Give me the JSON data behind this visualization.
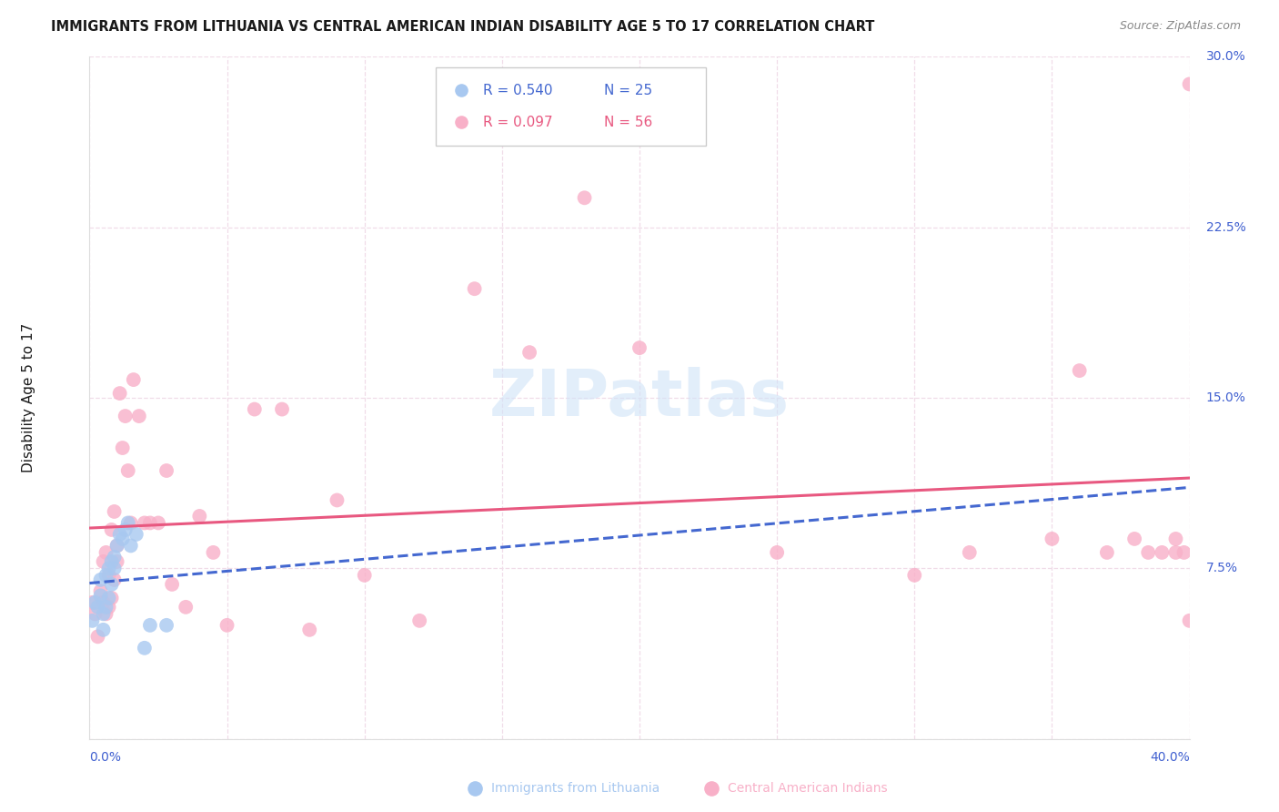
{
  "title": "IMMIGRANTS FROM LITHUANIA VS CENTRAL AMERICAN INDIAN DISABILITY AGE 5 TO 17 CORRELATION CHART",
  "source": "Source: ZipAtlas.com",
  "ylabel": "Disability Age 5 to 17",
  "xlim": [
    0.0,
    0.4
  ],
  "ylim": [
    0.0,
    0.3
  ],
  "xtick_left_label": "0.0%",
  "xtick_right_label": "40.0%",
  "ytick_labels": [
    "7.5%",
    "15.0%",
    "22.5%",
    "30.0%"
  ],
  "ytick_vals": [
    0.075,
    0.15,
    0.225,
    0.3
  ],
  "xtick_vals": [
    0.0,
    0.05,
    0.1,
    0.15,
    0.2,
    0.25,
    0.3,
    0.35,
    0.4
  ],
  "legend_blue_r": "R = 0.540",
  "legend_blue_n": "N = 25",
  "legend_pink_r": "R = 0.097",
  "legend_pink_n": "N = 56",
  "legend_blue_label": "Immigrants from Lithuania",
  "legend_pink_label": "Central American Indians",
  "blue_scatter_color": "#a8c8f0",
  "pink_scatter_color": "#f8b0c8",
  "blue_line_color": "#4468d0",
  "pink_line_color": "#e85880",
  "grid_color": "#f0dce8",
  "title_color": "#1a1a1a",
  "right_tick_color": "#4060d0",
  "bottom_tick_color": "#4060d0",
  "watermark_color": "#d0e4f8",
  "blue_x": [
    0.001,
    0.002,
    0.003,
    0.004,
    0.004,
    0.005,
    0.005,
    0.006,
    0.006,
    0.007,
    0.007,
    0.008,
    0.008,
    0.009,
    0.009,
    0.01,
    0.011,
    0.012,
    0.013,
    0.014,
    0.015,
    0.017,
    0.02,
    0.022,
    0.028
  ],
  "blue_y": [
    0.052,
    0.06,
    0.058,
    0.063,
    0.07,
    0.048,
    0.055,
    0.058,
    0.072,
    0.062,
    0.075,
    0.068,
    0.078,
    0.075,
    0.08,
    0.085,
    0.09,
    0.088,
    0.092,
    0.095,
    0.085,
    0.09,
    0.04,
    0.05,
    0.05
  ],
  "pink_x": [
    0.001,
    0.002,
    0.003,
    0.004,
    0.005,
    0.005,
    0.006,
    0.006,
    0.007,
    0.007,
    0.008,
    0.008,
    0.009,
    0.009,
    0.01,
    0.01,
    0.011,
    0.012,
    0.013,
    0.014,
    0.015,
    0.016,
    0.018,
    0.02,
    0.022,
    0.025,
    0.028,
    0.03,
    0.035,
    0.04,
    0.045,
    0.05,
    0.06,
    0.07,
    0.08,
    0.09,
    0.1,
    0.12,
    0.14,
    0.16,
    0.18,
    0.2,
    0.25,
    0.3,
    0.32,
    0.35,
    0.36,
    0.37,
    0.38,
    0.385,
    0.39,
    0.395,
    0.395,
    0.398,
    0.4,
    0.4
  ],
  "pink_y": [
    0.06,
    0.055,
    0.045,
    0.065,
    0.06,
    0.078,
    0.055,
    0.082,
    0.058,
    0.072,
    0.062,
    0.092,
    0.07,
    0.1,
    0.078,
    0.085,
    0.152,
    0.128,
    0.142,
    0.118,
    0.095,
    0.158,
    0.142,
    0.095,
    0.095,
    0.095,
    0.118,
    0.068,
    0.058,
    0.098,
    0.082,
    0.05,
    0.145,
    0.145,
    0.048,
    0.105,
    0.072,
    0.052,
    0.198,
    0.17,
    0.238,
    0.172,
    0.082,
    0.072,
    0.082,
    0.088,
    0.162,
    0.082,
    0.088,
    0.082,
    0.082,
    0.088,
    0.082,
    0.082,
    0.052,
    0.288
  ]
}
